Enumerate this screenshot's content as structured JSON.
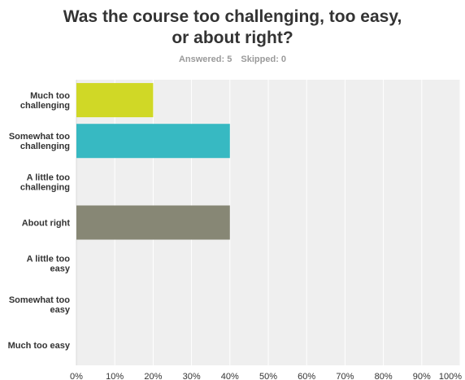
{
  "chart_data": {
    "type": "bar",
    "orientation": "horizontal",
    "title_line1": "Was the course too challenging, too easy,",
    "title_line2": "or about right?",
    "answered_label": "Answered: 5",
    "skipped_label": "Skipped: 0",
    "categories": [
      [
        "Much too",
        "challenging"
      ],
      [
        "Somewhat too",
        "challenging"
      ],
      [
        "A little too",
        "challenging"
      ],
      [
        "About right"
      ],
      [
        "A little too",
        "easy"
      ],
      [
        "Somewhat too",
        "easy"
      ],
      [
        "Much too easy"
      ]
    ],
    "values": [
      20,
      40,
      0,
      40,
      0,
      0,
      0
    ],
    "bar_colors": [
      "#d0d826",
      "#37b9c2",
      "#cccccc",
      "#878775",
      "#cccccc",
      "#cccccc",
      "#cccccc"
    ],
    "xlim": [
      0,
      100
    ],
    "x_ticks": [
      "0%",
      "10%",
      "20%",
      "30%",
      "40%",
      "50%",
      "60%",
      "70%",
      "80%",
      "90%",
      "100%"
    ],
    "grid": true,
    "plot_background": "#efefef"
  }
}
